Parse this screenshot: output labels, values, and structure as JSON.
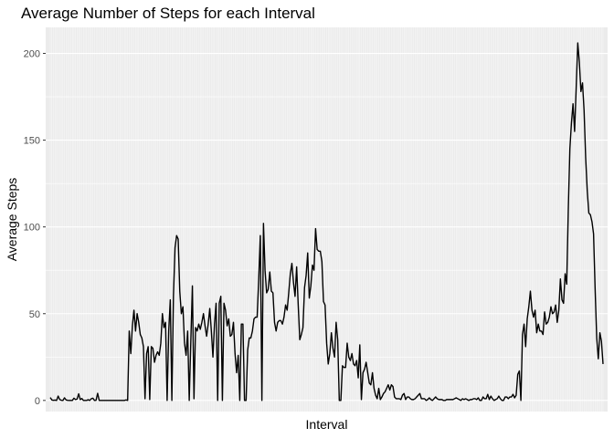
{
  "chart_data": {
    "type": "line",
    "title": "Average Number of Steps for each Interval",
    "xlabel": "Interval",
    "ylabel": "Average Steps",
    "ylim": [
      -6.4,
      215
    ],
    "y_ticks": [
      0,
      50,
      100,
      150,
      200
    ],
    "y_tick_labels": [
      "0",
      "50",
      "100",
      "150",
      "200"
    ],
    "x_axis_categorical": true,
    "x_tick_labels_shown": false,
    "grid": true,
    "legend": "none",
    "line_color": "#000000",
    "panel_background": "#ebebeb",
    "grid_color": "#ffffff",
    "series": [
      {
        "values": [
          1.7,
          0.3,
          0.1,
          0.2,
          0.0,
          2.5,
          0.5,
          0.1,
          0.0,
          1.5,
          0.3,
          0.1,
          0.0,
          0.0,
          0.0,
          1.3,
          0.5,
          0.8,
          3.8,
          0.5,
          1.1,
          0.0,
          0.0,
          0.0,
          0.4,
          0.0,
          1.0,
          1.3,
          0.0,
          0.1,
          4.1,
          0.0,
          0.0,
          0.0,
          0.0,
          0.0,
          0.0,
          0.0,
          0.0,
          0.0,
          0.0,
          0.0,
          0.0,
          0.0,
          0.0,
          0.0,
          0.0,
          0.0,
          0.3,
          0.0,
          40.0,
          27.0,
          43.0,
          52.0,
          40.0,
          50.0,
          45.0,
          38.0,
          36.0,
          31.0,
          1.0,
          27.0,
          31.0,
          0.5,
          31.0,
          30.0,
          22.0,
          26.0,
          28.0,
          26.0,
          33.0,
          50.0,
          42.0,
          45.0,
          0.0,
          40.0,
          58.0,
          0.0,
          60.0,
          88.0,
          95.0,
          93.0,
          63.0,
          50.0,
          54.0,
          33.0,
          26.0,
          40.0,
          0.0,
          34.0,
          66.0,
          1.0,
          42.0,
          40.0,
          44.0,
          41.0,
          45.0,
          50.0,
          43.0,
          37.0,
          44.0,
          53.0,
          40.0,
          25.0,
          44.0,
          56.0,
          0.0,
          56.0,
          60.0,
          0.0,
          56.0,
          52.0,
          43.0,
          47.0,
          37.0,
          38.0,
          45.0,
          27.0,
          16.0,
          26.0,
          0.0,
          44.0,
          44.0,
          0.0,
          0.0,
          29.0,
          36.0,
          36.0,
          40.0,
          47.0,
          48.0,
          48.0,
          70.0,
          95.0,
          0.0,
          102.0,
          75.0,
          62.0,
          64.0,
          74.0,
          63.0,
          62.0,
          45.0,
          40.0,
          45.0,
          46.0,
          46.0,
          44.0,
          48.0,
          55.0,
          52.0,
          62.0,
          73.0,
          79.0,
          68.0,
          60.0,
          77.0,
          55.0,
          35.0,
          38.0,
          42.0,
          65.0,
          72.0,
          85.0,
          59.0,
          66.0,
          78.0,
          75.0,
          99.0,
          87.0,
          86.0,
          86.0,
          80.0,
          57.0,
          55.0,
          33.0,
          21.0,
          27.0,
          39.0,
          30.0,
          25.0,
          45.0,
          35.0,
          0.0,
          0.0,
          20.0,
          19.0,
          19.0,
          33.0,
          25.0,
          23.0,
          27.0,
          21.0,
          20.0,
          23.0,
          13.0,
          32.0,
          0.5,
          16.0,
          18.0,
          22.0,
          16.0,
          10.0,
          9.0,
          16.0,
          7.0,
          3.0,
          1.0,
          7.0,
          0.5,
          2.0,
          4.0,
          5.0,
          7.0,
          9.0,
          6.0,
          9.0,
          8.0,
          2.0,
          1.0,
          1.0,
          1.0,
          0.5,
          3.0,
          4.0,
          0.5,
          2.0,
          2.0,
          1.0,
          0.5,
          0.5,
          1.0,
          2.0,
          3.0,
          4.0,
          1.0,
          1.0,
          1.0,
          0.0,
          0.5,
          1.5,
          0.5,
          0.0,
          1.0,
          2.0,
          1.0,
          0.5,
          0.5,
          0.5,
          0.0,
          0.0,
          0.5,
          0.5,
          0.5,
          0.5,
          0.5,
          1.0,
          1.5,
          1.0,
          0.5,
          0.0,
          1.0,
          0.5,
          1.0,
          0.5,
          0.0,
          0.5,
          0.5,
          1.0,
          1.0,
          0.5,
          1.5,
          0.0,
          0.0,
          2.0,
          1.0,
          1.0,
          3.5,
          0.5,
          2.5,
          1.0,
          0.0,
          0.5,
          1.0,
          2.5,
          1.0,
          0.0,
          0.0,
          2.0,
          2.0,
          1.0,
          2.0,
          2.0,
          3.5,
          1.5,
          3.0,
          15.0,
          17.0,
          0.0,
          38.0,
          44.0,
          31.0,
          47.0,
          54.0,
          63.0,
          52.0,
          48.0,
          52.0,
          39.0,
          44.0,
          40.0,
          40.0,
          38.0,
          51.0,
          44.0,
          45.0,
          48.0,
          54.0,
          50.0,
          51.0,
          55.0,
          45.0,
          52.0,
          70.0,
          58.0,
          56.0,
          73.0,
          67.0,
          110.0,
          145.0,
          160.0,
          171.0,
          155.0,
          180.0,
          206.0,
          195.0,
          178.0,
          183.0,
          167.0,
          140.0,
          121.0,
          108.0,
          107.0,
          103.0,
          96.0,
          64.0,
          36.0,
          24.0,
          39.0,
          34.0,
          21.0
        ]
      }
    ]
  }
}
